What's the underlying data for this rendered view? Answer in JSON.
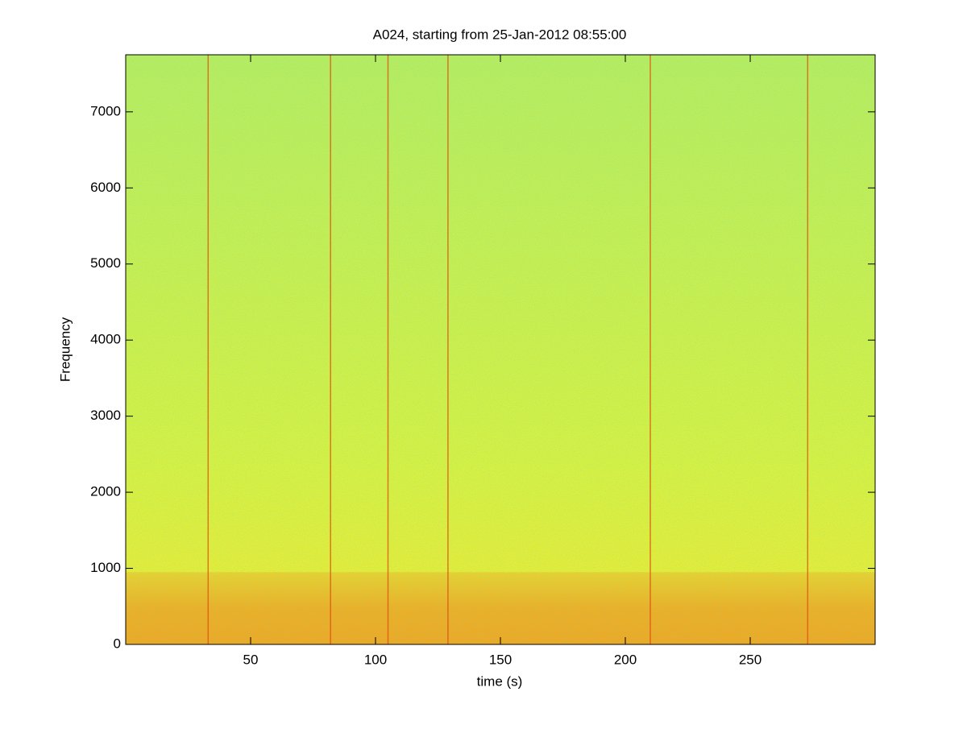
{
  "chart_data": {
    "type": "spectrogram",
    "title": "A024, starting from 25-Jan-2012 08:55:00",
    "xlabel": "time (s)",
    "ylabel": "Frequency",
    "xlim": [
      0,
      300
    ],
    "xticks": [
      50,
      100,
      150,
      200,
      250
    ],
    "ylim": [
      0,
      7750
    ],
    "yticks": [
      0,
      1000,
      2000,
      3000,
      4000,
      5000,
      6000,
      7000
    ],
    "events": [
      33,
      82,
      105,
      129,
      210,
      273
    ],
    "low_band": [
      0,
      950
    ],
    "colors": {
      "background": "#c8f05a",
      "band": "#f0a020",
      "event": "#e05010"
    }
  }
}
